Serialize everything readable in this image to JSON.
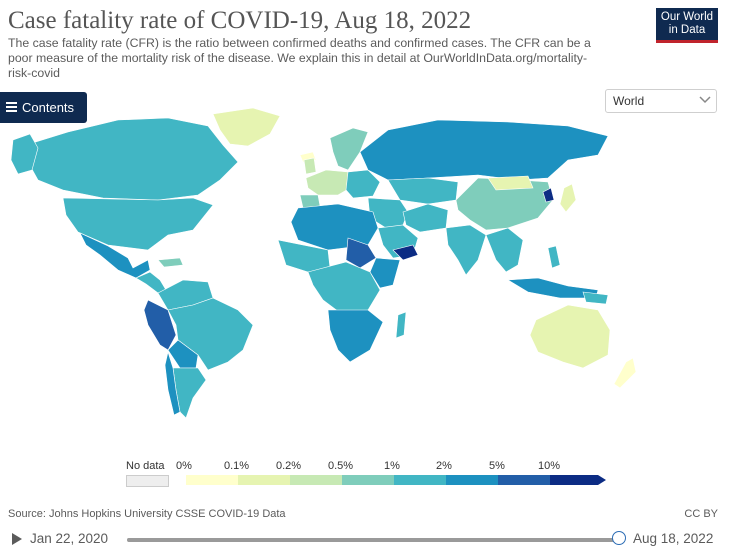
{
  "header": {
    "title": "Case fatality rate of COVID-19, Aug 18, 2022",
    "subtitle": "The case fatality rate (CFR) is the ratio between confirmed deaths and confirmed cases. The CFR can be a poor measure of the mortality risk of the disease. We explain this in detail at OurWorldInData.org/mortality-risk-covid",
    "logo_text": "Our World in Data"
  },
  "contents_button": {
    "label": "Contents"
  },
  "region_select": {
    "value": "World"
  },
  "legend": {
    "no_data_label": "No data",
    "ticks": [
      "0%",
      "0.1%",
      "0.2%",
      "0.5%",
      "1%",
      "2%",
      "5%",
      "10%"
    ]
  },
  "colors": {
    "bins": [
      "#ffffcc",
      "#e6f4b1",
      "#c7e9b4",
      "#7fcdbb",
      "#41b6c4",
      "#1d91c0",
      "#225ea8",
      "#0c2c84"
    ],
    "no_data": "#eeeeee",
    "brand": "#0f2a50",
    "accent": "#c0232c"
  },
  "footer": {
    "source": "Source: Johns Hopkins University CSSE COVID-19 Data",
    "license": "CC BY"
  },
  "timeline": {
    "start_date": "Jan 22, 2020",
    "end_date": "Aug 18, 2022",
    "progress": 1.0
  }
}
